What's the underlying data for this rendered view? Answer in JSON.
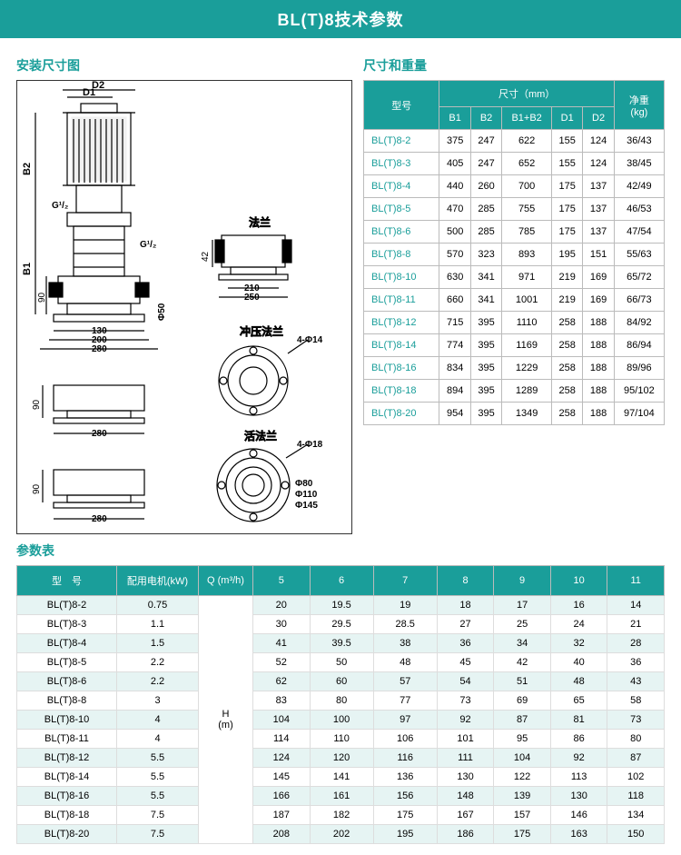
{
  "title": "BL(T)8技术参数",
  "colors": {
    "accent": "#1a9e9a",
    "row_stripe": "#e6f4f3",
    "border": "#bbb",
    "text": "#333"
  },
  "sections": {
    "diagram_title": "安装尺寸图",
    "dim_title": "尺寸和重量",
    "param_title": "参数表"
  },
  "diagram_labels": {
    "d1": "D1",
    "d2": "D2",
    "b1": "B1",
    "b2": "B2",
    "g12a": "G¹/₂",
    "g12b": "G¹/₂",
    "falan": "法兰",
    "chongya": "冲压法兰",
    "huofalan": "活法兰",
    "n90a": "90",
    "n90b": "90",
    "n90c": "90",
    "n130": "130",
    "n200": "200",
    "n280a": "280",
    "n280b": "280",
    "n280c": "280",
    "n42": "42",
    "n210": "210",
    "n250": "250",
    "phi50": "Φ50",
    "phi14": "4-Φ14",
    "phi18": "4-Φ18",
    "phi80": "Φ80",
    "phi110": "Φ110",
    "phi145": "Φ145"
  },
  "dim_table": {
    "headers": {
      "model": "型号",
      "dims": "尺寸（mm）",
      "weight": "净重\n(kg)",
      "b1": "B1",
      "b2": "B2",
      "b1b2": "B1+B2",
      "d1": "D1",
      "d2": "D2"
    },
    "rows": [
      [
        "BL(T)8-2",
        "375",
        "247",
        "622",
        "155",
        "124",
        "36/43"
      ],
      [
        "BL(T)8-3",
        "405",
        "247",
        "652",
        "155",
        "124",
        "38/45"
      ],
      [
        "BL(T)8-4",
        "440",
        "260",
        "700",
        "175",
        "137",
        "42/49"
      ],
      [
        "BL(T)8-5",
        "470",
        "285",
        "755",
        "175",
        "137",
        "46/53"
      ],
      [
        "BL(T)8-6",
        "500",
        "285",
        "785",
        "175",
        "137",
        "47/54"
      ],
      [
        "BL(T)8-8",
        "570",
        "323",
        "893",
        "195",
        "151",
        "55/63"
      ],
      [
        "BL(T)8-10",
        "630",
        "341",
        "971",
        "219",
        "169",
        "65/72"
      ],
      [
        "BL(T)8-11",
        "660",
        "341",
        "1001",
        "219",
        "169",
        "66/73"
      ],
      [
        "BL(T)8-12",
        "715",
        "395",
        "1110",
        "258",
        "188",
        "84/92"
      ],
      [
        "BL(T)8-14",
        "774",
        "395",
        "1169",
        "258",
        "188",
        "86/94"
      ],
      [
        "BL(T)8-16",
        "834",
        "395",
        "1229",
        "258",
        "188",
        "89/96"
      ],
      [
        "BL(T)8-18",
        "894",
        "395",
        "1289",
        "258",
        "188",
        "95/102"
      ],
      [
        "BL(T)8-20",
        "954",
        "395",
        "1349",
        "258",
        "188",
        "97/104"
      ]
    ]
  },
  "param_table": {
    "headers": {
      "model": "型　号",
      "motor": "配用电机(kW)",
      "q": "Q (m³/h)",
      "flows": [
        "5",
        "6",
        "7",
        "8",
        "9",
        "10",
        "11"
      ],
      "h_label": "H\n(m)"
    },
    "rows": [
      [
        "BL(T)8-2",
        "0.75",
        "20",
        "19.5",
        "19",
        "18",
        "17",
        "16",
        "14"
      ],
      [
        "BL(T)8-3",
        "1.1",
        "30",
        "29.5",
        "28.5",
        "27",
        "25",
        "24",
        "21"
      ],
      [
        "BL(T)8-4",
        "1.5",
        "41",
        "39.5",
        "38",
        "36",
        "34",
        "32",
        "28"
      ],
      [
        "BL(T)8-5",
        "2.2",
        "52",
        "50",
        "48",
        "45",
        "42",
        "40",
        "36"
      ],
      [
        "BL(T)8-6",
        "2.2",
        "62",
        "60",
        "57",
        "54",
        "51",
        "48",
        "43"
      ],
      [
        "BL(T)8-8",
        "3",
        "83",
        "80",
        "77",
        "73",
        "69",
        "65",
        "58"
      ],
      [
        "BL(T)8-10",
        "4",
        "104",
        "100",
        "97",
        "92",
        "87",
        "81",
        "73"
      ],
      [
        "BL(T)8-11",
        "4",
        "114",
        "110",
        "106",
        "101",
        "95",
        "86",
        "80"
      ],
      [
        "BL(T)8-12",
        "5.5",
        "124",
        "120",
        "116",
        "111",
        "104",
        "92",
        "87"
      ],
      [
        "BL(T)8-14",
        "5.5",
        "145",
        "141",
        "136",
        "130",
        "122",
        "113",
        "102"
      ],
      [
        "BL(T)8-16",
        "5.5",
        "166",
        "161",
        "156",
        "148",
        "139",
        "130",
        "118"
      ],
      [
        "BL(T)8-18",
        "7.5",
        "187",
        "182",
        "175",
        "167",
        "157",
        "146",
        "134"
      ],
      [
        "BL(T)8-20",
        "7.5",
        "208",
        "202",
        "195",
        "186",
        "175",
        "163",
        "150"
      ]
    ]
  }
}
